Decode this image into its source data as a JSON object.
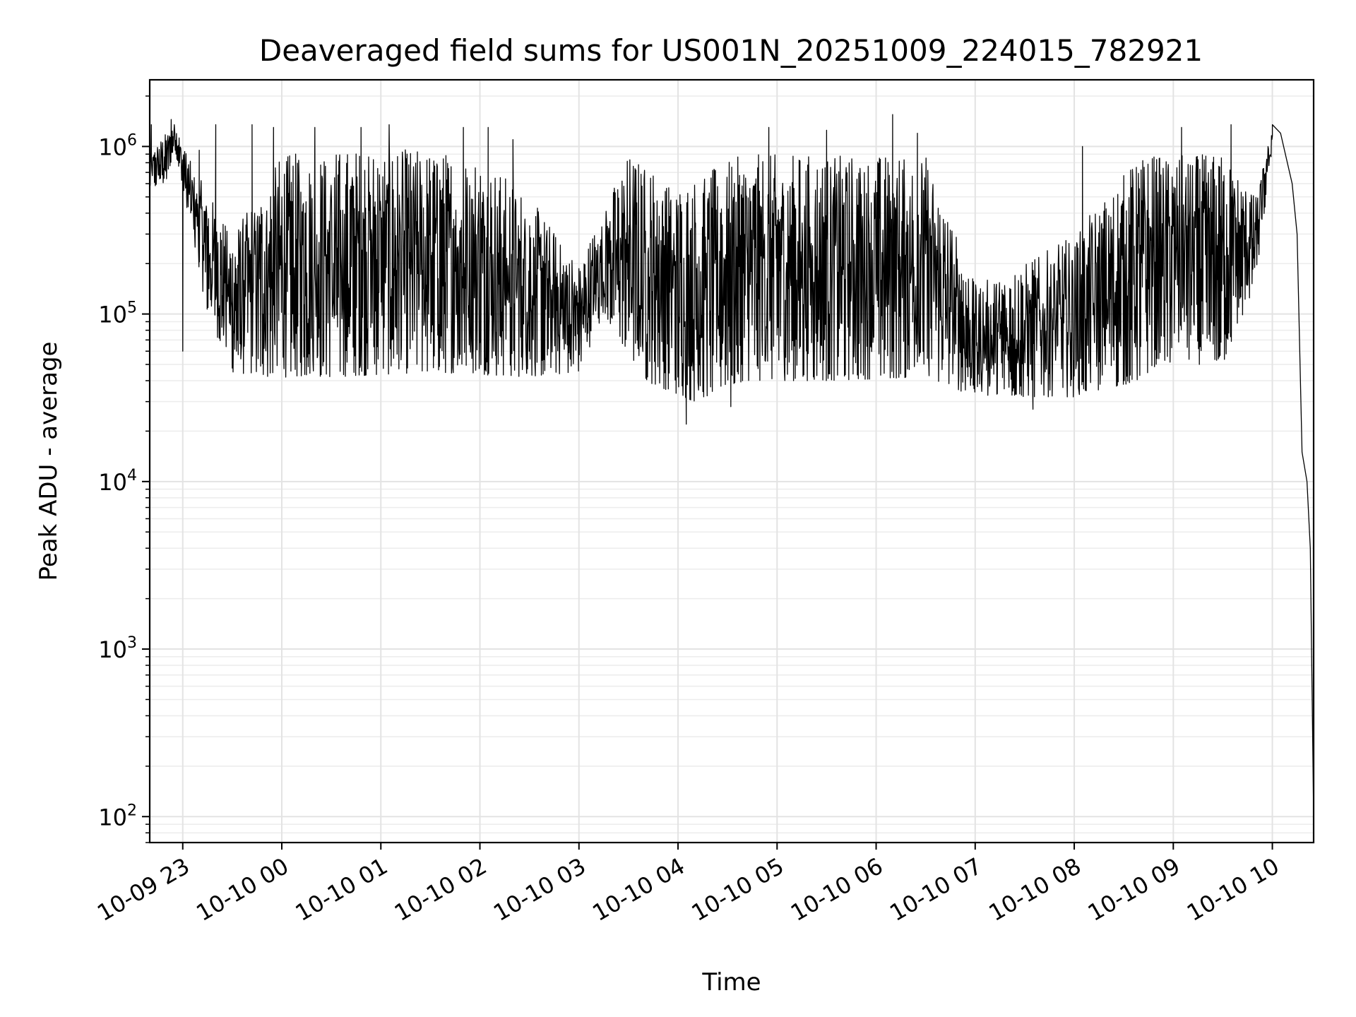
{
  "chart_data": {
    "type": "line",
    "title": "Deaveraged field sums for US001N_20251009_224015_782921",
    "xlabel": "Time",
    "ylabel": "Peak ADU - average",
    "yscale": "log",
    "ylim": [
      70,
      2500000
    ],
    "xlim": [
      "2025-10-09 22:40",
      "2025-10-10 10:25"
    ],
    "grid": true,
    "line_color": "#000000",
    "x_ticks": [
      {
        "x": "2025-10-09 23:00",
        "label": "10-09 23"
      },
      {
        "x": "2025-10-10 00:00",
        "label": "10-10 00"
      },
      {
        "x": "2025-10-10 01:00",
        "label": "10-10 01"
      },
      {
        "x": "2025-10-10 02:00",
        "label": "10-10 02"
      },
      {
        "x": "2025-10-10 03:00",
        "label": "10-10 03"
      },
      {
        "x": "2025-10-10 04:00",
        "label": "10-10 04"
      },
      {
        "x": "2025-10-10 05:00",
        "label": "10-10 05"
      },
      {
        "x": "2025-10-10 06:00",
        "label": "10-10 06"
      },
      {
        "x": "2025-10-10 07:00",
        "label": "10-10 07"
      },
      {
        "x": "2025-10-10 08:00",
        "label": "10-10 08"
      },
      {
        "x": "2025-10-10 09:00",
        "label": "10-10 09"
      },
      {
        "x": "2025-10-10 10:00",
        "label": "10-10 10"
      }
    ],
    "y_ticks": [
      {
        "value": 100,
        "base": "10",
        "exp": "2"
      },
      {
        "value": 1000,
        "base": "10",
        "exp": "3"
      },
      {
        "value": 10000,
        "base": "10",
        "exp": "4"
      },
      {
        "value": 100000,
        "base": "10",
        "exp": "5"
      },
      {
        "value": 1000000,
        "base": "10",
        "exp": "6"
      }
    ],
    "series": [
      {
        "band_min": [
          [
            "2025-10-09 22:40",
            550000
          ],
          [
            "2025-10-09 22:50",
            600000
          ],
          [
            "2025-10-09 22:55",
            1000000
          ],
          [
            "2025-10-09 23:05",
            300000
          ],
          [
            "2025-10-09 23:15",
            100000
          ],
          [
            "2025-10-09 23:30",
            45000
          ],
          [
            "2025-10-09 23:50",
            42000
          ],
          [
            "2025-10-10 00:30",
            42000
          ],
          [
            "2025-10-10 01:30",
            45000
          ],
          [
            "2025-10-10 02:30",
            42000
          ],
          [
            "2025-10-10 03:00",
            45000
          ],
          [
            "2025-10-10 03:15",
            100000
          ],
          [
            "2025-10-10 03:40",
            40000
          ],
          [
            "2025-10-10 04:10",
            30000
          ],
          [
            "2025-10-10 04:40",
            40000
          ],
          [
            "2025-10-10 05:30",
            40000
          ],
          [
            "2025-10-10 06:30",
            42000
          ],
          [
            "2025-10-10 07:00",
            32000
          ],
          [
            "2025-10-10 07:30",
            32000
          ],
          [
            "2025-10-10 08:00",
            32000
          ],
          [
            "2025-10-10 08:40",
            40000
          ],
          [
            "2025-10-10 08:50",
            50000
          ],
          [
            "2025-10-10 09:30",
            50000
          ],
          [
            "2025-10-10 09:50",
            150000
          ],
          [
            "2025-10-10 10:00",
            1000000
          ]
        ],
        "band_max": [
          [
            "2025-10-09 22:40",
            900000
          ],
          [
            "2025-10-09 22:55",
            1400000
          ],
          [
            "2025-10-09 23:05",
            800000
          ],
          [
            "2025-10-09 23:30",
            300000
          ],
          [
            "2025-10-10 00:00",
            900000
          ],
          [
            "2025-10-10 01:00",
            1000000
          ],
          [
            "2025-10-10 02:00",
            900000
          ],
          [
            "2025-10-10 02:30",
            500000
          ],
          [
            "2025-10-10 03:00",
            200000
          ],
          [
            "2025-10-10 03:30",
            900000
          ],
          [
            "2025-10-10 04:00",
            600000
          ],
          [
            "2025-10-10 04:40",
            900000
          ],
          [
            "2025-10-10 05:30",
            900000
          ],
          [
            "2025-10-10 06:30",
            900000
          ],
          [
            "2025-10-10 07:00",
            150000
          ],
          [
            "2025-10-10 07:30",
            200000
          ],
          [
            "2025-10-10 08:00",
            300000
          ],
          [
            "2025-10-10 08:40",
            900000
          ],
          [
            "2025-10-10 09:30",
            900000
          ],
          [
            "2025-10-10 09:50",
            500000
          ],
          [
            "2025-10-10 10:00",
            1300000
          ]
        ],
        "spikes": [
          [
            "2025-10-09 22:41",
            1350000
          ],
          [
            "2025-10-09 22:53",
            1450000
          ],
          [
            "2025-10-09 23:00",
            60000
          ],
          [
            "2025-10-09 23:10",
            950000
          ],
          [
            "2025-10-09 23:20",
            1350000
          ],
          [
            "2025-10-09 23:42",
            1350000
          ],
          [
            "2025-10-09 23:55",
            1300000
          ],
          [
            "2025-10-10 00:20",
            1300000
          ],
          [
            "2025-10-10 00:48",
            1300000
          ],
          [
            "2025-10-10 01:05",
            1350000
          ],
          [
            "2025-10-10 01:50",
            1300000
          ],
          [
            "2025-10-10 02:05",
            1300000
          ],
          [
            "2025-10-10 02:20",
            1100000
          ],
          [
            "2025-10-10 04:05",
            22000
          ],
          [
            "2025-10-10 04:32",
            28000
          ],
          [
            "2025-10-10 04:55",
            1300000
          ],
          [
            "2025-10-10 05:30",
            1250000
          ],
          [
            "2025-10-10 06:10",
            1550000
          ],
          [
            "2025-10-10 06:25",
            1200000
          ],
          [
            "2025-10-10 07:35",
            27000
          ],
          [
            "2025-10-10 08:05",
            1000000
          ],
          [
            "2025-10-10 09:05",
            1300000
          ],
          [
            "2025-10-10 09:35",
            1350000
          ]
        ],
        "tail": [
          [
            "2025-10-10 10:00",
            1350000
          ],
          [
            "2025-10-10 10:05",
            1200000
          ],
          [
            "2025-10-10 10:12",
            600000
          ],
          [
            "2025-10-10 10:15",
            300000
          ],
          [
            "2025-10-10 10:18",
            15000
          ],
          [
            "2025-10-10 10:21",
            10000
          ],
          [
            "2025-10-10 10:23",
            4000
          ],
          [
            "2025-10-10 10:25",
            100
          ]
        ]
      }
    ]
  }
}
